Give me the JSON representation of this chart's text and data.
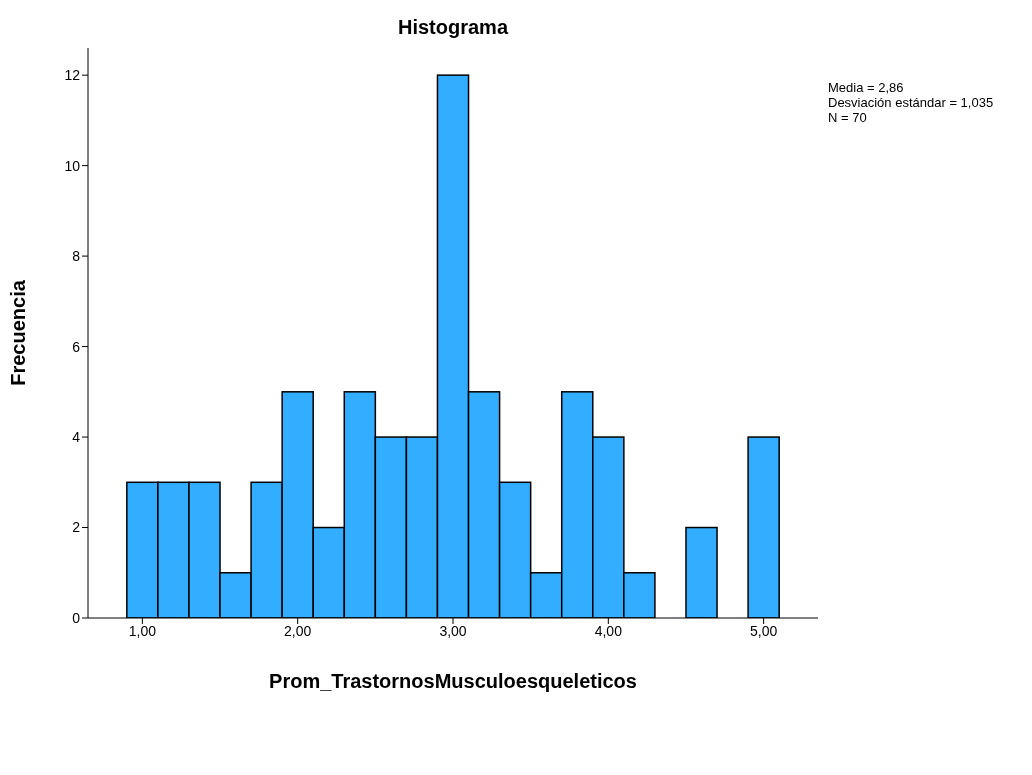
{
  "chart_data": {
    "type": "histogram",
    "title": "Histograma",
    "xlabel": "Prom_TrastornosMusculoesqueleticos",
    "ylabel": "Frecuencia",
    "bins": [
      0.9,
      1.1,
      1.3,
      1.5,
      1.7,
      1.9,
      2.1,
      2.3,
      2.5,
      2.7,
      2.9,
      3.1,
      3.3,
      3.5,
      3.7,
      3.9,
      4.1,
      4.3,
      4.5,
      4.7,
      4.9,
      5.1
    ],
    "values": [
      3,
      3,
      3,
      1,
      3,
      5,
      2,
      5,
      4,
      4,
      12,
      5,
      3,
      1,
      5,
      4,
      1,
      0,
      2,
      0,
      4
    ],
    "color": "#33adff",
    "xlim": [
      0.65,
      5.35
    ],
    "xticks": [
      {
        "value": 1,
        "label": "1,00"
      },
      {
        "value": 2,
        "label": "2,00"
      },
      {
        "value": 3,
        "label": "3,00"
      },
      {
        "value": 4,
        "label": "4,00"
      },
      {
        "value": 5,
        "label": "5,00"
      }
    ],
    "ylim": [
      0,
      12.6
    ],
    "yticks": [
      0,
      2,
      4,
      6,
      8,
      10,
      12
    ],
    "annotations": [
      "Media = 2,86",
      "Desviación estándar = 1,035",
      "N = 70"
    ]
  }
}
